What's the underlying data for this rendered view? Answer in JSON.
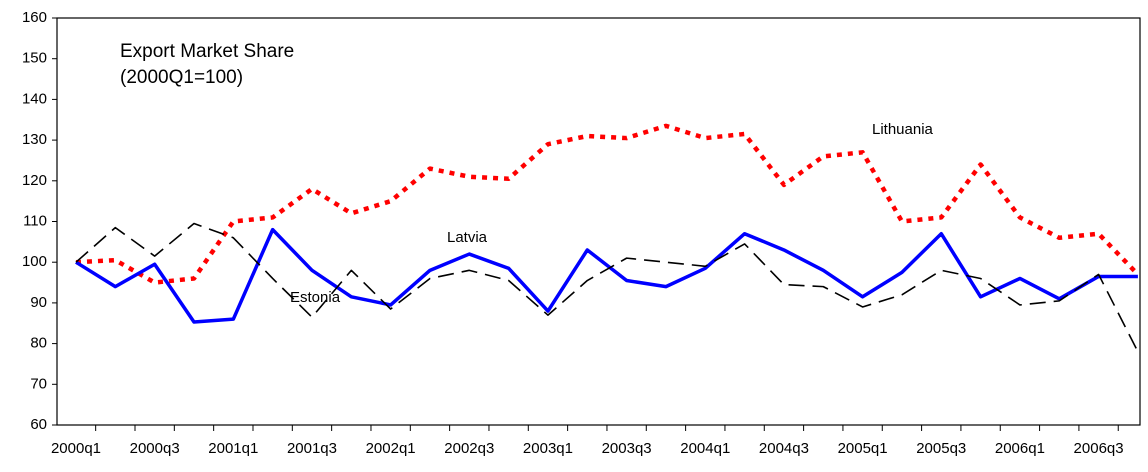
{
  "chart_data": {
    "type": "line",
    "title": "Export Market Share",
    "subtitle": "(2000Q1=100)",
    "categories": [
      "2000q1",
      null,
      "2000q3",
      null,
      "2001q1",
      null,
      "2001q3",
      null,
      "2002q1",
      null,
      "2002q3",
      null,
      "2003q1",
      null,
      "2003q3",
      null,
      "2004q1",
      null,
      "2004q3",
      null,
      "2005q1",
      null,
      "2005q3",
      null,
      "2006q1",
      null,
      "2006q3",
      null
    ],
    "series": [
      {
        "name": "Lithuania",
        "color": "#ff0000",
        "dash": "dotted",
        "values": [
          100,
          100.5,
          95,
          96,
          110,
          111,
          118,
          112,
          115,
          123,
          121,
          120.5,
          129,
          131,
          130.5,
          133.5,
          130.5,
          131.5,
          119,
          126,
          127,
          110,
          111,
          124,
          111,
          106,
          107,
          97
        ]
      },
      {
        "name": "Latvia",
        "color": "#0000ff",
        "dash": "solid",
        "values": [
          100,
          94,
          99.5,
          85.3,
          86,
          108,
          98,
          91.5,
          89.5,
          98,
          102,
          98.5,
          88,
          103,
          95.5,
          94,
          98.5,
          107,
          103,
          98,
          91.5,
          97.5,
          107,
          91.5,
          96,
          91,
          96.5,
          96.5
        ]
      },
      {
        "name": "Estonia",
        "color": "#000000",
        "dash": "dashed",
        "values": [
          100,
          108.5,
          101.5,
          109.5,
          106,
          96,
          86.5,
          98,
          88.5,
          96,
          98,
          95.5,
          87,
          95.5,
          101,
          100,
          99,
          104.5,
          94.5,
          94,
          89,
          92,
          98,
          96,
          89.5,
          90.5,
          97,
          78
        ]
      }
    ],
    "ylim": [
      60,
      160
    ],
    "yticks": [
      60,
      70,
      80,
      90,
      100,
      110,
      120,
      130,
      140,
      150,
      160
    ],
    "grid": false
  }
}
